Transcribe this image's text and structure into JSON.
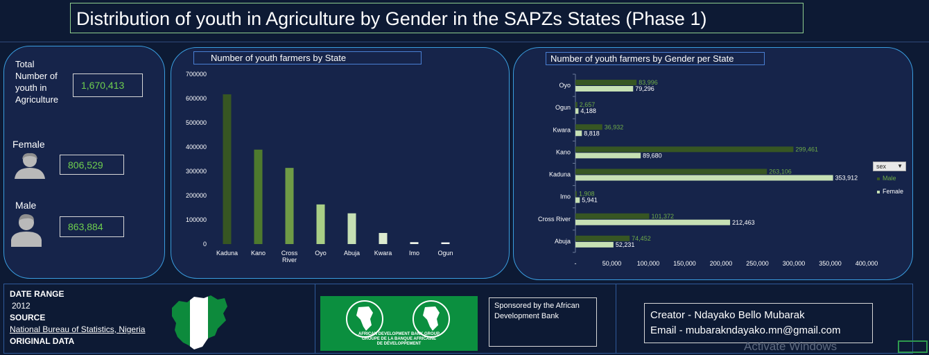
{
  "title": "Distribution of youth in Agriculture by Gender in the SAPZs States (Phase 1)",
  "kpis": {
    "total_label": "Total Number of youth in Agriculture",
    "total_value": "1,670,413",
    "female_label": "Female",
    "female_value": "806,529",
    "male_label": "Male",
    "male_value": "863,884"
  },
  "colors": {
    "male": "#375623",
    "female": "#c6e0b4",
    "male_label": "#70ad47",
    "panel_border": "#3a9ee0"
  },
  "chart_data": [
    {
      "type": "bar",
      "title": "Number of youth  farmers by  State",
      "categories": [
        "Kaduna",
        "Kano",
        "Cross River",
        "Oyo",
        "Abuja",
        "Kwara",
        "Imo",
        "Ogun"
      ],
      "values": [
        617018,
        389141,
        313835,
        163292,
        126683,
        45750,
        7849,
        6845
      ],
      "ylim": [
        0,
        700000
      ],
      "yticks": [
        "0",
        "100000",
        "200000",
        "300000",
        "400000",
        "500000",
        "600000",
        "700000"
      ],
      "bar_colors": [
        "#375623",
        "#4e7a2e",
        "#6f9b46",
        "#a9cf86",
        "#c6e0b4",
        "#dcebd0",
        "#eef5e8",
        "#f5f9f2"
      ]
    },
    {
      "type": "bar",
      "orientation": "horizontal",
      "title": "Number of youth farmers by Gender  per State",
      "categories": [
        "Oyo",
        "Ogun",
        "Kwara",
        "Kano",
        "Kaduna",
        "Imo",
        "Cross River",
        "Abuja"
      ],
      "series": [
        {
          "name": "Male",
          "values": [
            83996,
            2657,
            36932,
            299461,
            263106,
            1908,
            101372,
            74452
          ],
          "labels": [
            "83,996",
            "2,657",
            "36,932",
            "299,461",
            "263,106",
            "1,908",
            "101,372",
            "74,452"
          ]
        },
        {
          "name": "Female",
          "values": [
            79296,
            4188,
            8818,
            89680,
            353912,
            5941,
            212463,
            52231
          ],
          "labels": [
            "79,296",
            "4,188",
            "8,818",
            "89,680",
            "353,912",
            "5,941",
            "212,463",
            "52,231"
          ]
        }
      ],
      "xlim": [
        0,
        400000
      ],
      "xticks": [
        "-",
        "50,000",
        "100,000",
        "150,000",
        "200,000",
        "250,000",
        "300,000",
        "350,000",
        "400,000"
      ],
      "legend_title": "sex",
      "legend_placement": "right"
    }
  ],
  "info": {
    "date_range_label": "DATE RANGE",
    "date_range_value": "2012",
    "source_label": "SOURCE",
    "source_value": "National Bureau of Statistics, Nigeria",
    "original_label": "ORIGINAL DATA"
  },
  "sponsor": {
    "text": "Sponsored by the African Development Bank",
    "logo_text_1": "AFRICAN DEVELOPMENT BANK GROUP",
    "logo_text_2": "GROUPE DE LA BANQUE AFRICAINE",
    "logo_text_3": "DE DÉVELOPPEMENT"
  },
  "creator": {
    "name": "Creator - Ndayako Bello Mubarak",
    "email": "Email - mubarakndayako.mn@gmail.com"
  },
  "watermark": "Activate Windows"
}
